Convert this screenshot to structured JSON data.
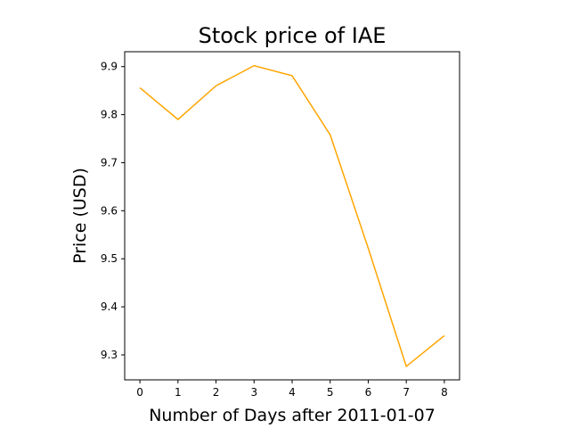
{
  "chart_data": {
    "type": "line",
    "title": "Stock price of IAE",
    "xlabel": "Number of Days after 2011-01-07",
    "ylabel": "Price (USD)",
    "x": [
      0,
      1,
      2,
      3,
      4,
      5,
      6,
      7,
      8
    ],
    "series": [
      {
        "values": [
          9.856,
          9.79,
          9.86,
          9.902,
          9.881,
          9.758,
          9.522,
          9.276,
          9.34
        ]
      }
    ],
    "xlim": [
      -0.4,
      8.4
    ],
    "ylim": [
      9.248,
      9.931
    ],
    "xticks": [
      0,
      1,
      2,
      3,
      4,
      5,
      6,
      7,
      8
    ],
    "yticks": [
      9.3,
      9.4,
      9.5,
      9.6,
      9.7,
      9.8,
      9.9
    ],
    "xtick_labels": [
      "0",
      "1",
      "2",
      "3",
      "4",
      "5",
      "6",
      "7",
      "8"
    ],
    "ytick_labels": [
      "9.3",
      "9.4",
      "9.5",
      "9.6",
      "9.7",
      "9.8",
      "9.9"
    ],
    "line_color": "#ffa500",
    "grid": false,
    "legend": false
  }
}
